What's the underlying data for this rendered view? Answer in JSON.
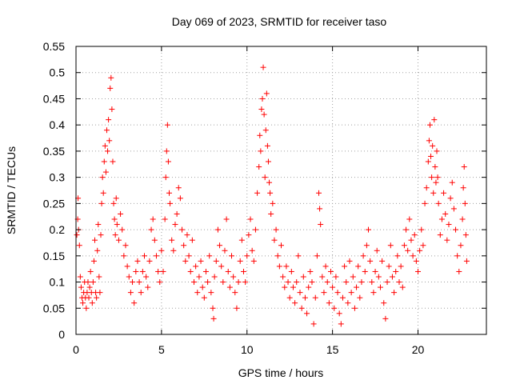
{
  "chart_data": {
    "type": "scatter",
    "title": "Day 069 of 2023, SRMTID for receiver taso",
    "xlabel": "GPS time / hours",
    "ylabel": "SRMTID / TECUs",
    "xlim": [
      0,
      24
    ],
    "ylim": [
      0,
      0.55
    ],
    "xticks": [
      "0",
      "5",
      "10",
      "15",
      "20"
    ],
    "xtick_values": [
      0,
      5,
      10,
      15,
      20
    ],
    "yticks": [
      "0",
      "0.05",
      "0.1",
      "0.15",
      "0.2",
      "0.25",
      "0.3",
      "0.35",
      "0.4",
      "0.45",
      "0.5",
      "0.55"
    ],
    "ytick_values": [
      0,
      0.05,
      0.1,
      0.15,
      0.2,
      0.25,
      0.3,
      0.35,
      0.4,
      0.45,
      0.5,
      0.55
    ],
    "grid": true,
    "marker": "plus",
    "color": "#ff0000",
    "series": [
      {
        "points": [
          [
            0.05,
            0.19
          ],
          [
            0.1,
            0.22
          ],
          [
            0.12,
            0.26
          ],
          [
            0.15,
            0.2
          ],
          [
            0.2,
            0.17
          ],
          [
            0.25,
            0.11
          ],
          [
            0.3,
            0.09
          ],
          [
            0.35,
            0.07
          ],
          [
            0.4,
            0.06
          ],
          [
            0.45,
            0.08
          ],
          [
            0.5,
            0.1
          ],
          [
            0.55,
            0.07
          ],
          [
            0.6,
            0.05
          ],
          [
            0.65,
            0.08
          ],
          [
            0.7,
            0.1
          ],
          [
            0.75,
            0.07
          ],
          [
            0.8,
            0.09
          ],
          [
            0.85,
            0.12
          ],
          [
            0.9,
            0.08
          ],
          [
            0.95,
            0.06
          ],
          [
            1.0,
            0.1
          ],
          [
            1.05,
            0.14
          ],
          [
            1.1,
            0.18
          ],
          [
            1.15,
            0.08
          ],
          [
            1.2,
            0.07
          ],
          [
            1.25,
            0.16
          ],
          [
            1.3,
            0.21
          ],
          [
            1.35,
            0.11
          ],
          [
            1.4,
            0.08
          ],
          [
            1.45,
            0.19
          ],
          [
            1.5,
            0.25
          ],
          [
            1.55,
            0.3
          ],
          [
            1.6,
            0.27
          ],
          [
            1.65,
            0.33
          ],
          [
            1.7,
            0.36
          ],
          [
            1.75,
            0.31
          ],
          [
            1.8,
            0.39
          ],
          [
            1.85,
            0.35
          ],
          [
            1.9,
            0.41
          ],
          [
            1.95,
            0.37
          ],
          [
            2.0,
            0.47
          ],
          [
            2.05,
            0.49
          ],
          [
            2.1,
            0.43
          ],
          [
            2.15,
            0.33
          ],
          [
            2.2,
            0.25
          ],
          [
            2.25,
            0.22
          ],
          [
            2.3,
            0.19
          ],
          [
            2.35,
            0.26
          ],
          [
            2.4,
            0.21
          ],
          [
            2.5,
            0.18
          ],
          [
            2.6,
            0.23
          ],
          [
            2.7,
            0.2
          ],
          [
            2.8,
            0.15
          ],
          [
            2.9,
            0.17
          ],
          [
            3.0,
            0.13
          ],
          [
            3.1,
            0.11
          ],
          [
            3.2,
            0.08
          ],
          [
            3.3,
            0.1
          ],
          [
            3.4,
            0.06
          ],
          [
            3.5,
            0.12
          ],
          [
            3.6,
            0.14
          ],
          [
            3.7,
            0.1
          ],
          [
            3.8,
            0.08
          ],
          [
            3.9,
            0.12
          ],
          [
            4.0,
            0.15
          ],
          [
            4.1,
            0.11
          ],
          [
            4.2,
            0.09
          ],
          [
            4.3,
            0.14
          ],
          [
            4.4,
            0.2
          ],
          [
            4.5,
            0.22
          ],
          [
            4.6,
            0.18
          ],
          [
            4.7,
            0.15
          ],
          [
            4.8,
            0.12
          ],
          [
            4.9,
            0.1
          ],
          [
            5.0,
            0.16
          ],
          [
            5.1,
            0.12
          ],
          [
            5.2,
            0.22
          ],
          [
            5.25,
            0.3
          ],
          [
            5.3,
            0.35
          ],
          [
            5.35,
            0.4
          ],
          [
            5.4,
            0.33
          ],
          [
            5.45,
            0.27
          ],
          [
            5.5,
            0.25
          ],
          [
            5.6,
            0.18
          ],
          [
            5.7,
            0.16
          ],
          [
            5.8,
            0.21
          ],
          [
            5.9,
            0.23
          ],
          [
            6.0,
            0.28
          ],
          [
            6.1,
            0.26
          ],
          [
            6.2,
            0.2
          ],
          [
            6.3,
            0.17
          ],
          [
            6.4,
            0.14
          ],
          [
            6.5,
            0.19
          ],
          [
            6.6,
            0.15
          ],
          [
            6.7,
            0.12
          ],
          [
            6.8,
            0.18
          ],
          [
            6.9,
            0.1
          ],
          [
            7.0,
            0.13
          ],
          [
            7.1,
            0.08
          ],
          [
            7.2,
            0.11
          ],
          [
            7.3,
            0.14
          ],
          [
            7.4,
            0.09
          ],
          [
            7.5,
            0.07
          ],
          [
            7.6,
            0.12
          ],
          [
            7.7,
            0.1
          ],
          [
            7.8,
            0.15
          ],
          [
            7.9,
            0.08
          ],
          [
            8.0,
            0.05
          ],
          [
            8.05,
            0.03
          ],
          [
            8.1,
            0.11
          ],
          [
            8.2,
            0.14
          ],
          [
            8.3,
            0.2
          ],
          [
            8.4,
            0.17
          ],
          [
            8.5,
            0.13
          ],
          [
            8.6,
            0.1
          ],
          [
            8.7,
            0.16
          ],
          [
            8.8,
            0.22
          ],
          [
            8.9,
            0.12
          ],
          [
            9.0,
            0.09
          ],
          [
            9.1,
            0.15
          ],
          [
            9.2,
            0.11
          ],
          [
            9.3,
            0.08
          ],
          [
            9.4,
            0.05
          ],
          [
            9.5,
            0.1
          ],
          [
            9.6,
            0.14
          ],
          [
            9.7,
            0.18
          ],
          [
            9.8,
            0.12
          ],
          [
            9.9,
            0.1
          ],
          [
            10.0,
            0.15
          ],
          [
            10.1,
            0.19
          ],
          [
            10.2,
            0.22
          ],
          [
            10.3,
            0.16
          ],
          [
            10.4,
            0.14
          ],
          [
            10.5,
            0.2
          ],
          [
            10.6,
            0.27
          ],
          [
            10.7,
            0.32
          ],
          [
            10.75,
            0.38
          ],
          [
            10.8,
            0.35
          ],
          [
            10.85,
            0.43
          ],
          [
            10.9,
            0.45
          ],
          [
            10.95,
            0.51
          ],
          [
            11.0,
            0.42
          ],
          [
            11.05,
            0.3
          ],
          [
            11.1,
            0.39
          ],
          [
            11.15,
            0.46
          ],
          [
            11.2,
            0.36
          ],
          [
            11.25,
            0.33
          ],
          [
            11.3,
            0.29
          ],
          [
            11.35,
            0.27
          ],
          [
            11.4,
            0.23
          ],
          [
            11.5,
            0.25
          ],
          [
            11.6,
            0.18
          ],
          [
            11.7,
            0.2
          ],
          [
            11.8,
            0.15
          ],
          [
            11.9,
            0.13
          ],
          [
            12.0,
            0.17
          ],
          [
            12.1,
            0.11
          ],
          [
            12.2,
            0.09
          ],
          [
            12.3,
            0.13
          ],
          [
            12.4,
            0.1
          ],
          [
            12.5,
            0.07
          ],
          [
            12.6,
            0.12
          ],
          [
            12.7,
            0.09
          ],
          [
            12.8,
            0.06
          ],
          [
            12.9,
            0.1
          ],
          [
            13.0,
            0.15
          ],
          [
            13.1,
            0.08
          ],
          [
            13.2,
            0.05
          ],
          [
            13.3,
            0.11
          ],
          [
            13.4,
            0.07
          ],
          [
            13.5,
            0.04
          ],
          [
            13.6,
            0.09
          ],
          [
            13.7,
            0.12
          ],
          [
            13.8,
            0.1
          ],
          [
            13.9,
            0.02
          ],
          [
            14.0,
            0.07
          ],
          [
            14.1,
            0.15
          ],
          [
            14.2,
            0.27
          ],
          [
            14.25,
            0.24
          ],
          [
            14.3,
            0.21
          ],
          [
            14.4,
            0.11
          ],
          [
            14.5,
            0.08
          ],
          [
            14.6,
            0.13
          ],
          [
            14.7,
            0.1
          ],
          [
            14.8,
            0.06
          ],
          [
            14.9,
            0.12
          ],
          [
            15.0,
            0.09
          ],
          [
            15.1,
            0.05
          ],
          [
            15.2,
            0.11
          ],
          [
            15.3,
            0.08
          ],
          [
            15.4,
            0.04
          ],
          [
            15.5,
            0.02
          ],
          [
            15.6,
            0.07
          ],
          [
            15.7,
            0.13
          ],
          [
            15.8,
            0.1
          ],
          [
            15.9,
            0.06
          ],
          [
            16.0,
            0.14
          ],
          [
            16.1,
            0.08
          ],
          [
            16.2,
            0.11
          ],
          [
            16.3,
            0.05
          ],
          [
            16.4,
            0.09
          ],
          [
            16.5,
            0.13
          ],
          [
            16.6,
            0.07
          ],
          [
            16.7,
            0.1
          ],
          [
            16.8,
            0.15
          ],
          [
            16.9,
            0.12
          ],
          [
            17.0,
            0.17
          ],
          [
            17.1,
            0.2
          ],
          [
            17.2,
            0.14
          ],
          [
            17.3,
            0.1
          ],
          [
            17.4,
            0.08
          ],
          [
            17.5,
            0.12
          ],
          [
            17.6,
            0.16
          ],
          [
            17.7,
            0.11
          ],
          [
            17.8,
            0.09
          ],
          [
            17.9,
            0.14
          ],
          [
            18.0,
            0.06
          ],
          [
            18.1,
            0.03
          ],
          [
            18.2,
            0.1
          ],
          [
            18.3,
            0.13
          ],
          [
            18.4,
            0.17
          ],
          [
            18.5,
            0.11
          ],
          [
            18.6,
            0.08
          ],
          [
            18.7,
            0.12
          ],
          [
            18.8,
            0.15
          ],
          [
            18.9,
            0.1
          ],
          [
            19.0,
            0.13
          ],
          [
            19.1,
            0.09
          ],
          [
            19.2,
            0.17
          ],
          [
            19.3,
            0.2
          ],
          [
            19.4,
            0.16
          ],
          [
            19.5,
            0.22
          ],
          [
            19.6,
            0.18
          ],
          [
            19.7,
            0.15
          ],
          [
            19.8,
            0.19
          ],
          [
            19.9,
            0.14
          ],
          [
            20.0,
            0.12
          ],
          [
            20.1,
            0.16
          ],
          [
            20.2,
            0.2
          ],
          [
            20.3,
            0.17
          ],
          [
            20.4,
            0.25
          ],
          [
            20.5,
            0.28
          ],
          [
            20.6,
            0.33
          ],
          [
            20.65,
            0.37
          ],
          [
            20.7,
            0.4
          ],
          [
            20.75,
            0.34
          ],
          [
            20.8,
            0.3
          ],
          [
            20.85,
            0.36
          ],
          [
            20.9,
            0.27
          ],
          [
            20.95,
            0.41
          ],
          [
            21.0,
            0.32
          ],
          [
            21.05,
            0.29
          ],
          [
            21.1,
            0.35
          ],
          [
            21.15,
            0.3
          ],
          [
            21.2,
            0.25
          ],
          [
            21.3,
            0.19
          ],
          [
            21.4,
            0.22
          ],
          [
            21.5,
            0.27
          ],
          [
            21.6,
            0.23
          ],
          [
            21.7,
            0.18
          ],
          [
            21.8,
            0.21
          ],
          [
            21.9,
            0.26
          ],
          [
            22.0,
            0.29
          ],
          [
            22.1,
            0.24
          ],
          [
            22.2,
            0.2
          ],
          [
            22.3,
            0.15
          ],
          [
            22.4,
            0.12
          ],
          [
            22.5,
            0.17
          ],
          [
            22.6,
            0.22
          ],
          [
            22.65,
            0.28
          ],
          [
            22.7,
            0.32
          ],
          [
            22.75,
            0.25
          ],
          [
            22.8,
            0.19
          ],
          [
            22.85,
            0.14
          ]
        ]
      }
    ]
  }
}
